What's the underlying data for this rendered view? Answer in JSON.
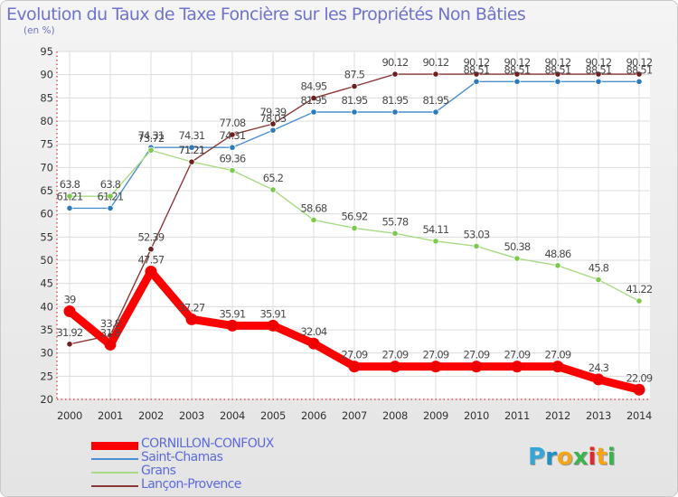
{
  "page": {
    "title": "Evolution du Taux de Taxe Foncière sur les Propriétés Non Bâties",
    "subtitle": "(en %)",
    "brand": {
      "letters": [
        "P",
        "r",
        "o",
        "x",
        "i",
        "t",
        "i"
      ],
      "colors": [
        "#33a8d8",
        "#1d91c8",
        "#f5a516",
        "#3ab54a",
        "#e9252b",
        "#f5a516",
        "#3ab54a"
      ]
    }
  },
  "chart_data": {
    "type": "line",
    "title": "Evolution du Taux de Taxe Foncière sur les Propriétés Non Bâties",
    "ylabel": "(en %)",
    "xlabel": "",
    "ylim": [
      20,
      95
    ],
    "yticks": [
      20,
      25,
      30,
      35,
      40,
      45,
      50,
      55,
      60,
      65,
      70,
      75,
      80,
      85,
      90,
      95
    ],
    "x": [
      "2000",
      "2001",
      "2002",
      "2003",
      "2004",
      "2005",
      "2006",
      "2007",
      "2008",
      "2009",
      "2010",
      "2011",
      "2012",
      "2013",
      "2014"
    ],
    "grid": true,
    "legend_position": "bottom-left",
    "series": [
      {
        "name": "Saint-Chamas",
        "color": "#4a8fd0",
        "marker": "#2c7ab8",
        "values": [
          61.21,
          61.21,
          74.31,
          74.31,
          74.31,
          78.03,
          81.95,
          81.95,
          81.95,
          81.95,
          88.51,
          88.51,
          88.51,
          88.51,
          88.51
        ],
        "labels": [
          "61.21",
          "61.21",
          "74.31",
          "74.31",
          "74.31",
          "78.03",
          "81.95",
          "81.95",
          "81.95",
          "81.95",
          "88.51",
          "88.51",
          "88.51",
          "88.51",
          "88.51"
        ]
      },
      {
        "name": "Grans",
        "color": "#a8db82",
        "marker": "#7cc94c",
        "values": [
          63.8,
          63.8,
          73.72,
          71.21,
          69.36,
          65.2,
          58.68,
          56.92,
          55.78,
          54.11,
          53.03,
          50.38,
          48.86,
          45.8,
          41.22
        ],
        "labels": [
          "63.8",
          "63.8",
          "73.72",
          "71.21",
          "69.36",
          "65.2",
          "58.68",
          "56.92",
          "55.78",
          "54.11",
          "53.03",
          "50.38",
          "48.86",
          "45.8",
          "41.22"
        ]
      },
      {
        "name": "Lançon-Provence",
        "color": "#8a3838",
        "marker": "#6e1e1e",
        "values": [
          31.92,
          33.8,
          52.39,
          71.21,
          77.08,
          79.39,
          84.95,
          87.5,
          90.12,
          90.12,
          90.12,
          90.12,
          90.12,
          90.12,
          90.12
        ],
        "labels": [
          "31.92",
          "33.8",
          "52.39",
          "71.21",
          "77.08",
          "79.39",
          "84.95",
          "87.5",
          "90.12",
          "90.12",
          "90.12",
          "90.12",
          "90.12",
          "90.12",
          "90.12"
        ]
      },
      {
        "name": "CORNILLON-CONFOUX",
        "color": "#ff0000",
        "marker": "#ee0000",
        "values": [
          39,
          31.8,
          47.57,
          37.27,
          35.91,
          35.91,
          32.04,
          27.09,
          27.09,
          27.09,
          27.09,
          27.09,
          27.09,
          24.3,
          22.09
        ],
        "labels": [
          "39",
          "31.8",
          "47.57",
          "37.27",
          "35.91",
          "35.91",
          "32.04",
          "27.09",
          "27.09",
          "27.09",
          "27.09",
          "27.09",
          "27.09",
          "24.3",
          "22.09"
        ]
      }
    ],
    "legend": [
      {
        "name": "CORNILLON-CONFOUX",
        "color": "#ff0000",
        "text_color": "#5c6bd8"
      },
      {
        "name": "Saint-Chamas",
        "color": "#4a8fd0",
        "text_color": "#5c6bd8"
      },
      {
        "name": "Grans",
        "color": "#a8db82",
        "text_color": "#5c6bd8"
      },
      {
        "name": "Lançon-Provence",
        "color": "#8a3838",
        "text_color": "#5c6bd8"
      }
    ]
  }
}
